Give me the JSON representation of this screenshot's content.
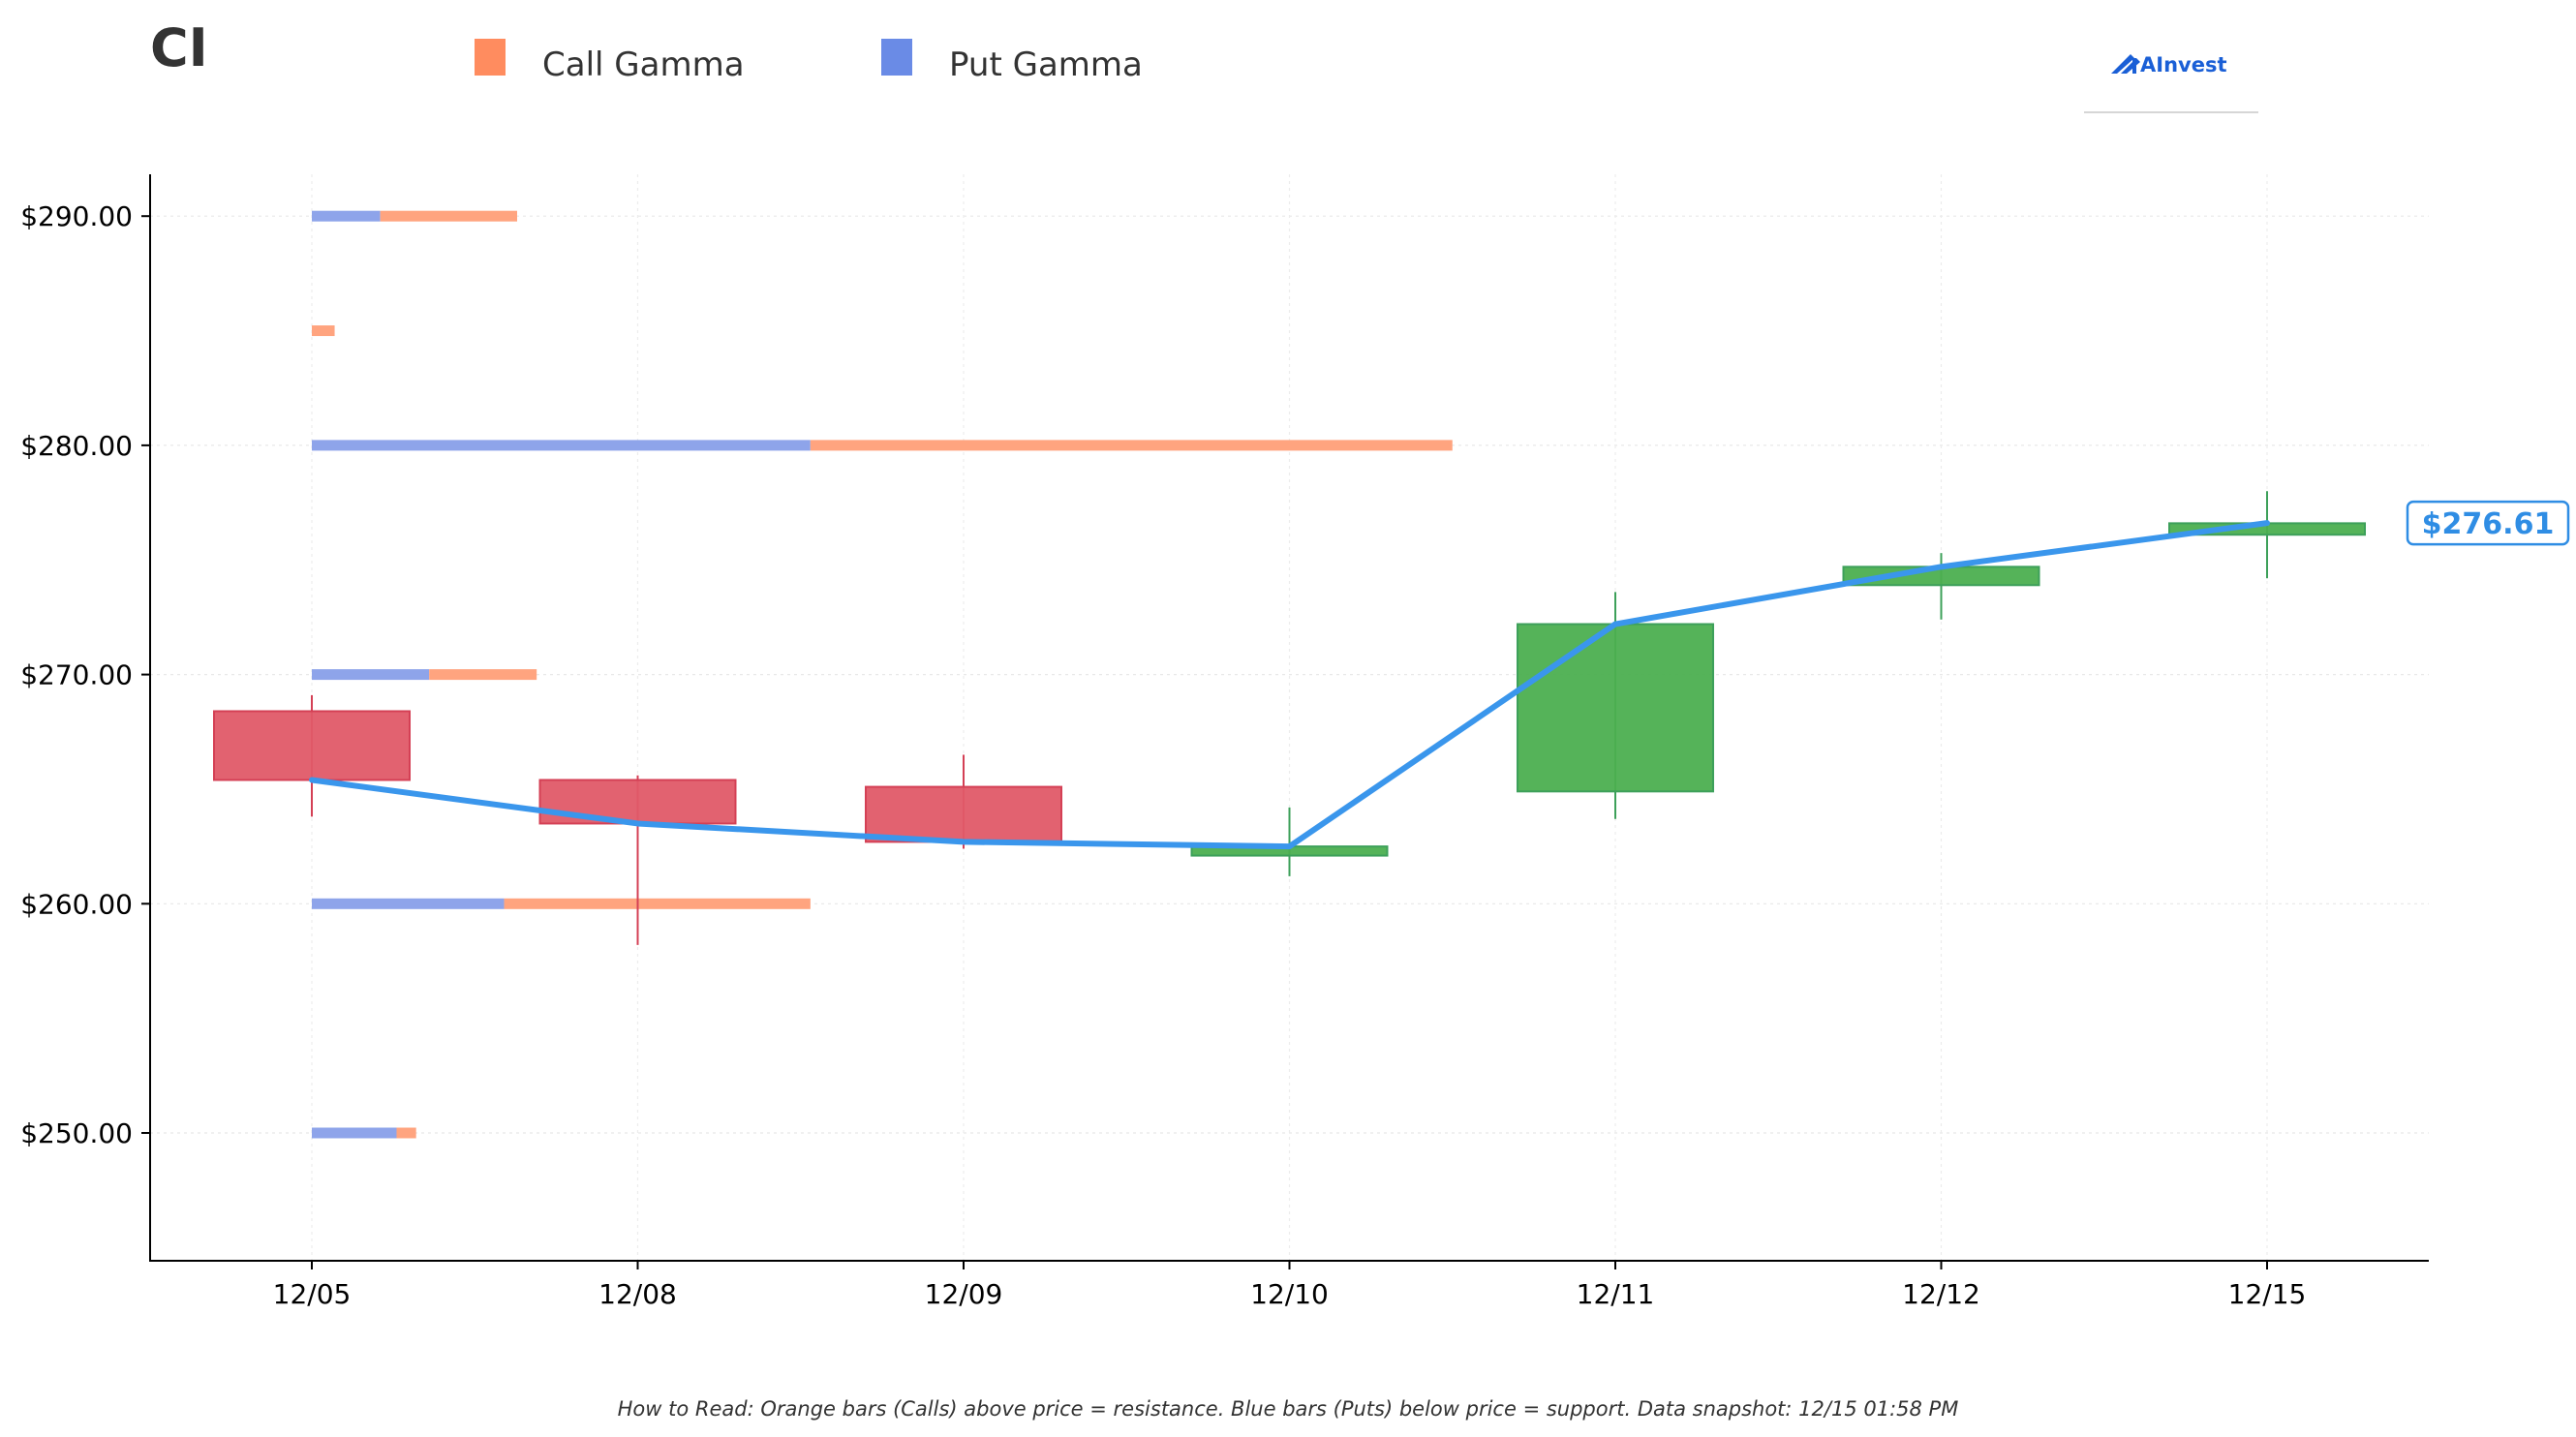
{
  "ticker": "CI",
  "legend": [
    {
      "label": "Call Gamma",
      "color": "#ff8c5f"
    },
    {
      "label": "Put Gamma",
      "color": "#6a8be6"
    }
  ],
  "logo": {
    "text": "AInvest",
    "icon": "aiinvest-logo-icon"
  },
  "footnote": "How to Read: Orange bars (Calls) above price = resistance. Blue bars (Puts) below price = support. Data snapshot: 12/15 01:58 PM",
  "current_price_label": "$276.61",
  "colors": {
    "up": "#4caf50",
    "down": "#e05a68",
    "line": "#3a96ec",
    "call": "#ffa47f",
    "put": "#8ea4ea",
    "price_box": "#2f8de4"
  },
  "chart_data": {
    "type": "candlestick",
    "categories": [
      "12/05",
      "12/08",
      "12/09",
      "12/10",
      "12/11",
      "12/12",
      "12/15"
    ],
    "y_ticks": [
      250,
      260,
      270,
      280,
      290
    ],
    "y_tick_labels": [
      "$250.00",
      "$260.00",
      "$270.00",
      "$280.00",
      "$290.00"
    ],
    "ylim": [
      244.5,
      292
    ],
    "grid": true,
    "candles": [
      {
        "date": "12/05",
        "open": 268.4,
        "high": 269.1,
        "low": 263.8,
        "close": 265.4
      },
      {
        "date": "12/08",
        "open": 265.4,
        "high": 265.6,
        "low": 258.2,
        "close": 263.5
      },
      {
        "date": "12/09",
        "open": 265.1,
        "high": 266.5,
        "low": 262.4,
        "close": 262.7
      },
      {
        "date": "12/10",
        "open": 262.1,
        "high": 264.2,
        "low": 261.2,
        "close": 262.5
      },
      {
        "date": "12/11",
        "open": 264.9,
        "high": 273.6,
        "low": 263.7,
        "close": 272.2
      },
      {
        "date": "12/12",
        "open": 273.9,
        "high": 275.3,
        "low": 272.4,
        "close": 274.7
      },
      {
        "date": "12/15",
        "open": 276.1,
        "high": 278.0,
        "low": 274.2,
        "close": 276.6
      }
    ],
    "close_line": [
      265.4,
      263.5,
      262.7,
      262.5,
      272.2,
      274.7,
      276.61
    ],
    "gamma_bars": [
      {
        "strike": 290,
        "put": 0.21,
        "call": 0.42
      },
      {
        "strike": 285,
        "put": 0.0,
        "call": 0.07
      },
      {
        "strike": 280,
        "put": 1.53,
        "call": 1.97
      },
      {
        "strike": 270,
        "put": 0.36,
        "call": 0.33
      },
      {
        "strike": 260,
        "put": 0.59,
        "call": 0.94
      },
      {
        "strike": 250,
        "put": 0.26,
        "call": 0.06
      }
    ],
    "gamma_unit_note": "bar lengths in category-spacing units"
  }
}
